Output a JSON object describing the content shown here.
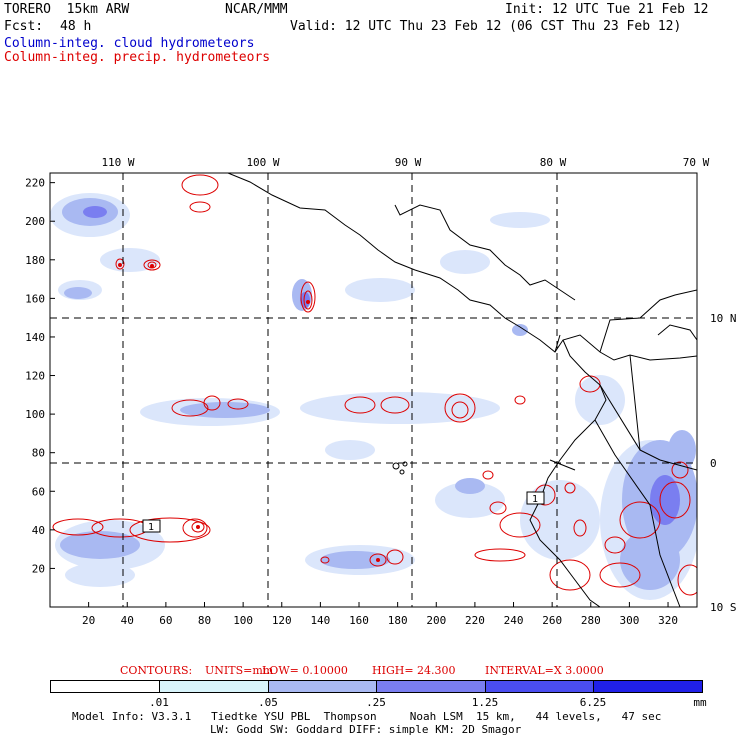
{
  "header": {
    "model_name": "TORERO  15km ARW",
    "org": "NCAR/MMM",
    "init": "Init: 12 UTC Tue 21 Feb 12",
    "fcst_label": "Fcst:",
    "fcst_hours": "48 h",
    "valid": "Valid: 12 UTC Thu 23 Feb 12 (06 CST Thu 23 Feb 12)",
    "field1": "Column-integ. cloud hydrometeors",
    "field2": "Column-integ. precip. hydrometeors"
  },
  "map": {
    "lon_labels": [
      "110 W",
      "100 W",
      "90 W",
      "80 W",
      "70 W"
    ],
    "lat_labels": [
      "10 N",
      "0",
      "10 S"
    ],
    "y_ticks": [
      "220",
      "200",
      "180",
      "160",
      "140",
      "120",
      "100",
      "80",
      "60",
      "40",
      "20"
    ],
    "x_ticks": [
      "20",
      "40",
      "60",
      "80",
      "100",
      "120",
      "140",
      "160",
      "180",
      "200",
      "220",
      "240",
      "260",
      "280",
      "300",
      "320"
    ],
    "low_marker": "1"
  },
  "contour_info": {
    "contours": "CONTOURS:",
    "units": "UNITS=mm",
    "low": "LOW= 0.10000",
    "high": "HIGH=  24.300",
    "interval": "INTERVAL=X  3.0000"
  },
  "colorbar": {
    "labels": [
      ".01",
      ".05",
      ".25",
      "1.25",
      "6.25",
      "mm"
    ],
    "colors": [
      "#ffffff",
      "#d8f4fb",
      "#a9b9f2",
      "#7a7ef0",
      "#4a4df0",
      "#2020e8"
    ]
  },
  "footer": {
    "line1": "Model Info: V3.3.1   Tiedtke YSU PBL  Thompson     Noah LSM  15 km,   44 levels,   47 sec",
    "line2": "LW: Godd SW: Goddard DIFF: simple KM: 2D Smagor"
  }
}
